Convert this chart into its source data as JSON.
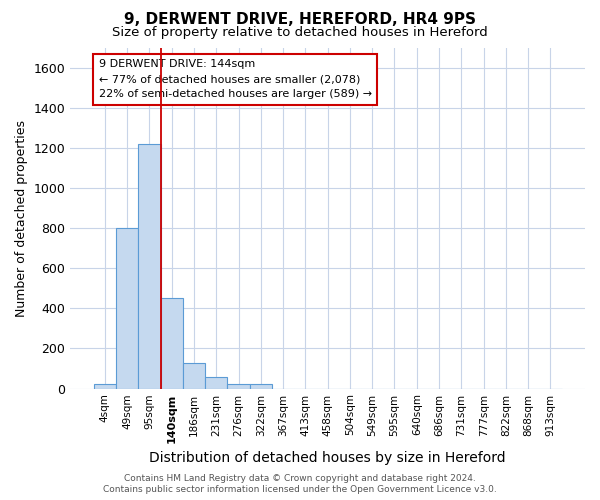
{
  "title": "9, DERWENT DRIVE, HEREFORD, HR4 9PS",
  "subtitle": "Size of property relative to detached houses in Hereford",
  "xlabel": "Distribution of detached houses by size in Hereford",
  "ylabel": "Number of detached properties",
  "footnote1": "Contains HM Land Registry data © Crown copyright and database right 2024.",
  "footnote2": "Contains public sector information licensed under the Open Government Licence v3.0.",
  "categories": [
    "4sqm",
    "49sqm",
    "95sqm",
    "140sqm",
    "186sqm",
    "231sqm",
    "276sqm",
    "322sqm",
    "367sqm",
    "413sqm",
    "458sqm",
    "504sqm",
    "549sqm",
    "595sqm",
    "640sqm",
    "686sqm",
    "731sqm",
    "777sqm",
    "822sqm",
    "868sqm",
    "913sqm"
  ],
  "values": [
    25,
    800,
    1220,
    450,
    125,
    60,
    25,
    25,
    0,
    0,
    0,
    0,
    0,
    0,
    0,
    0,
    0,
    0,
    0,
    0,
    0
  ],
  "bar_color": "#c5d9ef",
  "bar_edge_color": "#5b9bd5",
  "red_line_index": 3,
  "red_line_color": "#cc0000",
  "annotation_text": "9 DERWENT DRIVE: 144sqm\n← 77% of detached houses are smaller (2,078)\n22% of semi-detached houses are larger (589) →",
  "annotation_box_edge": "#cc0000",
  "ylim": [
    0,
    1700
  ],
  "yticks": [
    0,
    200,
    400,
    600,
    800,
    1000,
    1200,
    1400,
    1600
  ],
  "background_color": "#ffffff",
  "grid_color": "#c8d4e8",
  "title_fontsize": 11,
  "subtitle_fontsize": 9.5,
  "xlabel_fontsize": 10,
  "ylabel_fontsize": 9,
  "tick_fontsize": 7.5,
  "ytick_fontsize": 9,
  "annotation_fontsize": 8,
  "footnote_fontsize": 6.5,
  "highlighted_tick_index": 3
}
